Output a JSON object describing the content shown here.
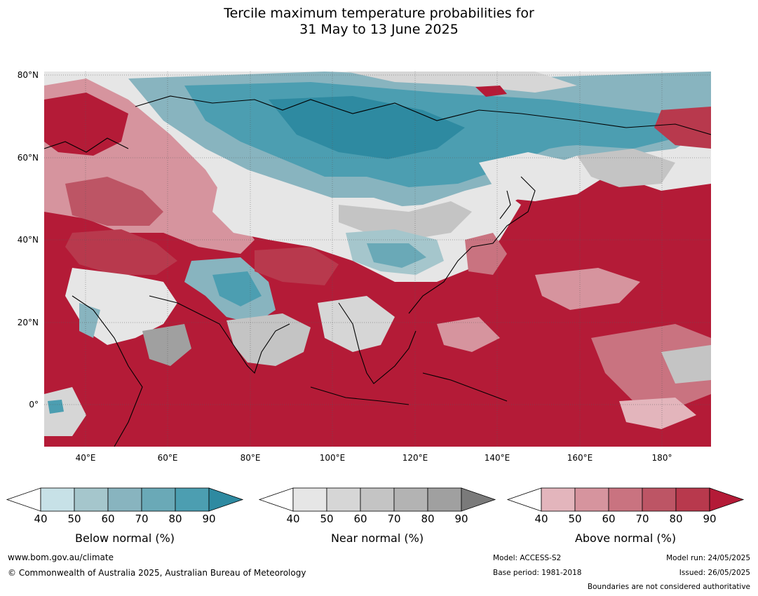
{
  "title": {
    "line1": "Tercile maximum temperature probabilities for",
    "line2": "31 May to 13 June 2025"
  },
  "map": {
    "lat_labels": [
      "80°N",
      "60°N",
      "40°N",
      "20°N",
      "0°"
    ],
    "lon_labels": [
      "40°E",
      "60°E",
      "80°E",
      "100°E",
      "120°E",
      "140°E",
      "160°E",
      "180°"
    ],
    "extent": {
      "lon_min": 30,
      "lon_max": 192,
      "lat_min": -10,
      "lat_max": 81
    },
    "dominant_category": "Above normal, 90%",
    "background_color": "#b41b37"
  },
  "legends": [
    {
      "name": "below",
      "title": "Below normal (%)",
      "ticks": [
        "40",
        "50",
        "60",
        "70",
        "80",
        "90"
      ],
      "colors": [
        "#ffffff",
        "#c7e1e7",
        "#a5c6cc",
        "#88b4bf",
        "#6aa9b7",
        "#4c9eb1",
        "#2e8aa1"
      ]
    },
    {
      "name": "near",
      "title": "Near normal (%)",
      "ticks": [
        "40",
        "50",
        "60",
        "70",
        "80",
        "90"
      ],
      "colors": [
        "#ffffff",
        "#e6e6e6",
        "#d6d6d6",
        "#c4c4c4",
        "#b3b3b3",
        "#a0a0a0",
        "#7a7a7a"
      ]
    },
    {
      "name": "above",
      "title": "Above normal (%)",
      "ticks": [
        "40",
        "50",
        "60",
        "70",
        "80",
        "90"
      ],
      "colors": [
        "#ffffff",
        "#e3b5bc",
        "#d6949e",
        "#c97380",
        "#bd5565",
        "#b8394d",
        "#b41b37"
      ]
    }
  ],
  "footer": {
    "website": "www.bom.gov.au/climate",
    "copyright": "© Commonwealth of Australia 2025, Australian Bureau of Meteorology",
    "model": "Model: ACCESS-S2",
    "base_period": "Base period: 1981-2018",
    "model_run": "Model run: 24/05/2025",
    "issued": "Issued: 26/05/2025",
    "boundaries_note": "Boundaries are not considered authoritative"
  }
}
